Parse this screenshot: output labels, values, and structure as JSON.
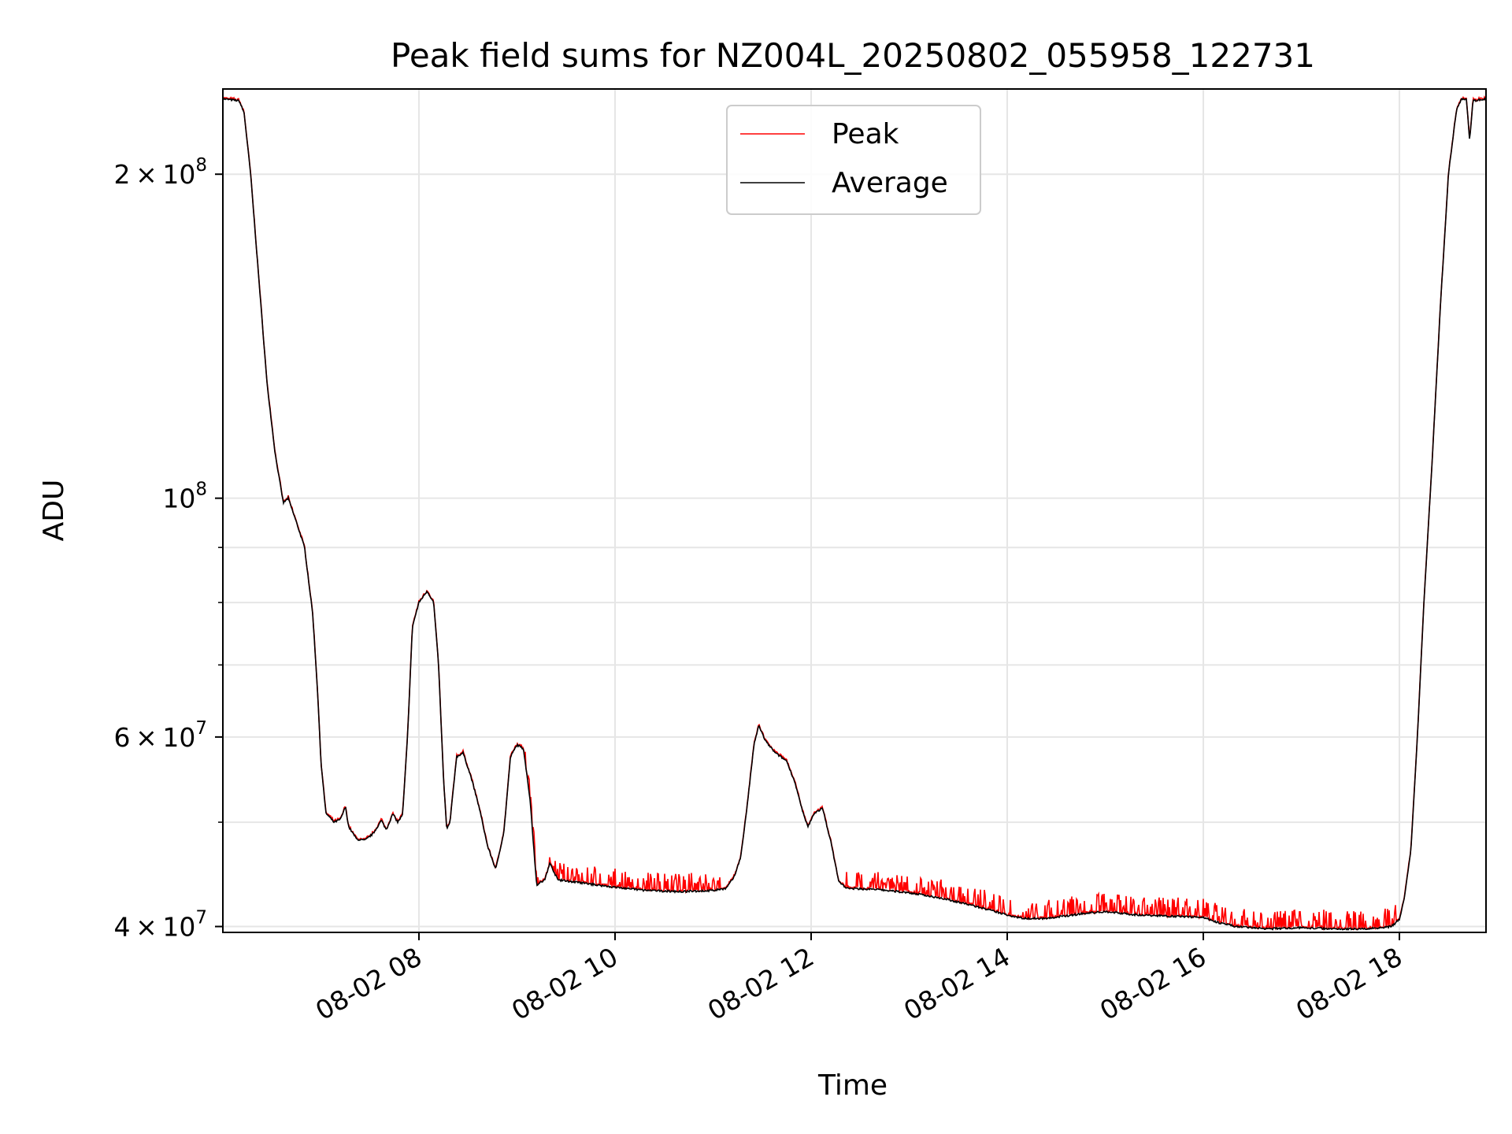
{
  "chart_data": {
    "type": "line",
    "title": "Peak field sums for NZ004L_20250802_055958_122731",
    "xlabel": "Time",
    "ylabel": "ADU",
    "y_scale": "log",
    "ylim": [
      39500000,
      240000000
    ],
    "xlim": [
      "2025-08-02 06:00",
      "2025-08-02 18:53"
    ],
    "grid": true,
    "legend": {
      "placement": "upper-center"
    },
    "x_ticks": [
      {
        "x": "2025-08-02 08:00",
        "label": "08-02 08"
      },
      {
        "x": "2025-08-02 10:00",
        "label": "08-02 10"
      },
      {
        "x": "2025-08-02 12:00",
        "label": "08-02 12"
      },
      {
        "x": "2025-08-02 14:00",
        "label": "08-02 14"
      },
      {
        "x": "2025-08-02 16:00",
        "label": "08-02 16"
      },
      {
        "x": "2025-08-02 18:00",
        "label": "08-02 18"
      }
    ],
    "y_major_ticks": [
      {
        "y": 40000000,
        "mantissa": "4",
        "exp": "7"
      },
      {
        "y": 60000000,
        "mantissa": "6",
        "exp": "7"
      },
      {
        "y": 100000000,
        "mantissa": "",
        "exp": "8"
      },
      {
        "y": 200000000,
        "mantissa": "2",
        "exp": "8"
      }
    ],
    "y_minor_ticks": [
      50000000,
      70000000,
      80000000,
      90000000
    ],
    "series": [
      {
        "name": "Peak",
        "color": "#ff0000",
        "spiky_ranges": [
          [
            "2025-08-02 09:05",
            "2025-08-02 11:05"
          ],
          [
            "2025-08-02 12:20",
            "2025-08-02 17:58"
          ]
        ]
      },
      {
        "name": "Average",
        "color": "#000000",
        "points": [
          [
            "2025-08-02 06:00",
            235000000
          ],
          [
            "2025-08-02 06:10",
            234000000
          ],
          [
            "2025-08-02 06:13",
            228000000
          ],
          [
            "2025-08-02 06:17",
            200000000
          ],
          [
            "2025-08-02 06:22",
            160000000
          ],
          [
            "2025-08-02 06:27",
            128000000
          ],
          [
            "2025-08-02 06:32",
            110000000
          ],
          [
            "2025-08-02 06:37",
            99000000
          ],
          [
            "2025-08-02 06:40",
            100000000
          ],
          [
            "2025-08-02 06:45",
            95000000
          ],
          [
            "2025-08-02 06:50",
            90000000
          ],
          [
            "2025-08-02 06:55",
            78000000
          ],
          [
            "2025-08-02 06:58",
            66000000
          ],
          [
            "2025-08-02 07:00",
            57000000
          ],
          [
            "2025-08-02 07:03",
            51000000
          ],
          [
            "2025-08-02 07:08",
            50000000
          ],
          [
            "2025-08-02 07:12",
            50300000
          ],
          [
            "2025-08-02 07:15",
            51700000
          ],
          [
            "2025-08-02 07:17",
            49500000
          ],
          [
            "2025-08-02 07:22",
            48200000
          ],
          [
            "2025-08-02 07:27",
            48100000
          ],
          [
            "2025-08-02 07:32",
            48800000
          ],
          [
            "2025-08-02 07:37",
            50200000
          ],
          [
            "2025-08-02 07:40",
            49200000
          ],
          [
            "2025-08-02 07:44",
            50900000
          ],
          [
            "2025-08-02 07:47",
            50000000
          ],
          [
            "2025-08-02 07:50",
            50800000
          ],
          [
            "2025-08-02 07:53",
            60000000
          ],
          [
            "2025-08-02 07:56",
            76000000
          ],
          [
            "2025-08-02 08:00",
            80000000
          ],
          [
            "2025-08-02 08:05",
            82000000
          ],
          [
            "2025-08-02 08:09",
            80000000
          ],
          [
            "2025-08-02 08:12",
            70000000
          ],
          [
            "2025-08-02 08:15",
            55000000
          ],
          [
            "2025-08-02 08:17",
            49200000
          ],
          [
            "2025-08-02 08:19",
            50000000
          ],
          [
            "2025-08-02 08:23",
            57500000
          ],
          [
            "2025-08-02 08:27",
            58000000
          ],
          [
            "2025-08-02 08:32",
            55000000
          ],
          [
            "2025-08-02 08:37",
            51500000
          ],
          [
            "2025-08-02 08:42",
            47500000
          ],
          [
            "2025-08-02 08:47",
            45200000
          ],
          [
            "2025-08-02 08:52",
            49000000
          ],
          [
            "2025-08-02 08:56",
            57500000
          ],
          [
            "2025-08-02 09:00",
            59000000
          ],
          [
            "2025-08-02 09:04",
            58500000
          ],
          [
            "2025-08-02 09:08",
            52500000
          ],
          [
            "2025-08-02 09:12",
            43700000
          ],
          [
            "2025-08-02 09:17",
            44200000
          ],
          [
            "2025-08-02 09:20",
            45800000
          ],
          [
            "2025-08-02 09:25",
            44200000
          ],
          [
            "2025-08-02 09:35",
            44000000
          ],
          [
            "2025-08-02 09:45",
            43800000
          ],
          [
            "2025-08-02 10:00",
            43500000
          ],
          [
            "2025-08-02 10:20",
            43200000
          ],
          [
            "2025-08-02 10:40",
            43100000
          ],
          [
            "2025-08-02 11:00",
            43200000
          ],
          [
            "2025-08-02 11:08",
            43400000
          ],
          [
            "2025-08-02 11:13",
            44500000
          ],
          [
            "2025-08-02 11:17",
            46500000
          ],
          [
            "2025-08-02 11:21",
            52000000
          ],
          [
            "2025-08-02 11:25",
            59000000
          ],
          [
            "2025-08-02 11:28",
            61500000
          ],
          [
            "2025-08-02 11:32",
            59500000
          ],
          [
            "2025-08-02 11:38",
            58000000
          ],
          [
            "2025-08-02 11:45",
            57000000
          ],
          [
            "2025-08-02 11:50",
            54500000
          ],
          [
            "2025-08-02 11:55",
            51000000
          ],
          [
            "2025-08-02 11:58",
            49500000
          ],
          [
            "2025-08-02 12:02",
            51000000
          ],
          [
            "2025-08-02 12:07",
            51500000
          ],
          [
            "2025-08-02 12:12",
            48000000
          ],
          [
            "2025-08-02 12:17",
            44000000
          ],
          [
            "2025-08-02 12:22",
            43400000
          ],
          [
            "2025-08-02 12:40",
            43300000
          ],
          [
            "2025-08-02 13:00",
            43000000
          ],
          [
            "2025-08-02 13:20",
            42500000
          ],
          [
            "2025-08-02 13:40",
            41800000
          ],
          [
            "2025-08-02 14:00",
            41000000
          ],
          [
            "2025-08-02 14:10",
            40700000
          ],
          [
            "2025-08-02 14:25",
            40700000
          ],
          [
            "2025-08-02 14:45",
            41100000
          ],
          [
            "2025-08-02 15:00",
            41300000
          ],
          [
            "2025-08-02 15:20",
            41000000
          ],
          [
            "2025-08-02 15:40",
            40900000
          ],
          [
            "2025-08-02 16:00",
            40800000
          ],
          [
            "2025-08-02 16:10",
            40300000
          ],
          [
            "2025-08-02 16:20",
            40000000
          ],
          [
            "2025-08-02 16:40",
            39800000
          ],
          [
            "2025-08-02 17:00",
            39900000
          ],
          [
            "2025-08-02 17:20",
            39800000
          ],
          [
            "2025-08-02 17:40",
            39800000
          ],
          [
            "2025-08-02 17:55",
            40000000
          ],
          [
            "2025-08-02 18:00",
            40600000
          ],
          [
            "2025-08-02 18:03",
            42500000
          ],
          [
            "2025-08-02 18:07",
            47000000
          ],
          [
            "2025-08-02 18:11",
            60000000
          ],
          [
            "2025-08-02 18:15",
            80000000
          ],
          [
            "2025-08-02 18:20",
            108000000
          ],
          [
            "2025-08-02 18:25",
            150000000
          ],
          [
            "2025-08-02 18:30",
            200000000
          ],
          [
            "2025-08-02 18:35",
            230000000
          ],
          [
            "2025-08-02 18:38",
            235000000
          ],
          [
            "2025-08-02 18:41",
            235000000
          ],
          [
            "2025-08-02 18:43",
            215000000
          ],
          [
            "2025-08-02 18:45",
            234000000
          ],
          [
            "2025-08-02 18:53",
            235000000
          ]
        ]
      }
    ]
  }
}
